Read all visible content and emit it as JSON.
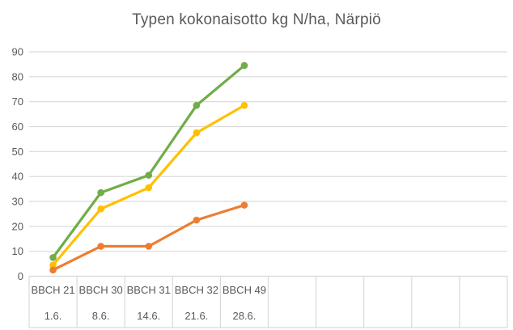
{
  "chart_data": {
    "type": "line",
    "title": "Typen kokonaisotto kg N/ha, Närpiö",
    "categories": [
      {
        "bbch": "BBCH 21",
        "date": "1.6."
      },
      {
        "bbch": "BBCH 30",
        "date": "8.6."
      },
      {
        "bbch": "BBCH 31",
        "date": "14.6."
      },
      {
        "bbch": "BBCH 32",
        "date": "21.6."
      },
      {
        "bbch": "BBCH 49",
        "date": "28.6."
      }
    ],
    "series": [
      {
        "id": "green",
        "color": "#70AD47",
        "values": [
          7.5,
          33.5,
          40.5,
          68.5,
          84.5
        ]
      },
      {
        "id": "yellow",
        "color": "#FFC000",
        "values": [
          4.5,
          27,
          35.5,
          57.5,
          68.5
        ]
      },
      {
        "id": "orange",
        "color": "#ED7D31",
        "values": [
          2.5,
          12,
          12,
          22.5,
          28.5
        ]
      }
    ],
    "y_ticks": [
      0,
      10,
      20,
      30,
      40,
      50,
      60,
      70,
      80,
      90
    ],
    "ylim": [
      0,
      90
    ],
    "xlabel": "",
    "ylabel": "",
    "legend": "none",
    "grid": "horizontal",
    "total_category_slots": 10,
    "colors": {
      "grid": "#D9D9D9",
      "axis_text": "#595959",
      "title_text": "#595959",
      "background": "#FFFFFF"
    }
  }
}
